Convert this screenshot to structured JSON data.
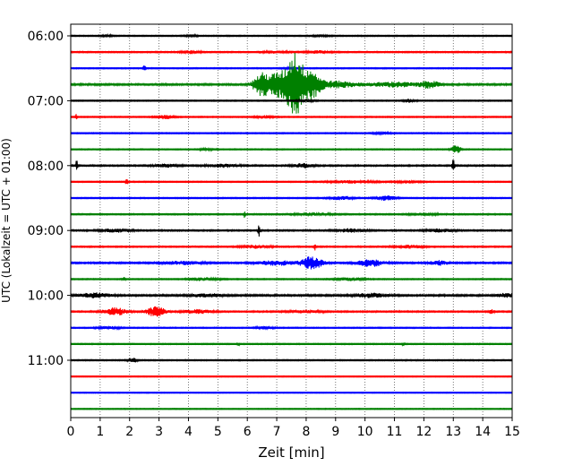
{
  "chart_data": {
    "type": "line",
    "title": "",
    "xlabel": "Zeit  [min]",
    "ylabel": "UTC (Lokalzeit = UTC + 01:00)",
    "xlim": [
      0,
      15
    ],
    "x_ticks": [
      "0",
      "1",
      "2",
      "3",
      "4",
      "5",
      "6",
      "7",
      "8",
      "9",
      "10",
      "11",
      "12",
      "13",
      "14",
      "15"
    ],
    "y_ticks": [
      "06:00",
      "07:00",
      "08:00",
      "09:00",
      "10:00",
      "11:00"
    ],
    "y_tick_trace_index": [
      0,
      4,
      8,
      12,
      16,
      20
    ],
    "grid": "vertical dotted lines",
    "trace_interval_minutes": 15,
    "trace_colors": [
      "#000000",
      "#ff0000",
      "#0000ff",
      "#008000"
    ],
    "traces": [
      {
        "start": "06:00",
        "color": "#000000",
        "noise": 0.6,
        "events": [
          {
            "x": 1.2,
            "amp": 1.2,
            "width": 0.2
          },
          {
            "x": 4.1,
            "amp": 1.0,
            "width": 0.2
          },
          {
            "x": 8.5,
            "amp": 1.0,
            "width": 0.3
          }
        ]
      },
      {
        "start": "06:15",
        "color": "#ff0000",
        "noise": 0.7,
        "events": [
          {
            "x": 4.1,
            "amp": 1.6,
            "width": 0.3
          },
          {
            "x": 7.0,
            "amp": 1.2,
            "width": 0.4
          },
          {
            "x": 8.4,
            "amp": 1.4,
            "width": 0.4
          }
        ]
      },
      {
        "start": "06:30",
        "color": "#0000ff",
        "noise": 0.6,
        "events": [
          {
            "x": 2.5,
            "amp": 4.0,
            "width": 0.04
          },
          {
            "x": 7.5,
            "amp": 1.0,
            "width": 0.3
          }
        ]
      },
      {
        "start": "06:45",
        "color": "#008000",
        "noise": 1.0,
        "events": [
          {
            "x": 6.5,
            "amp": 12.0,
            "width": 0.3
          },
          {
            "x": 7.1,
            "amp": 14.0,
            "width": 0.35
          },
          {
            "x": 7.6,
            "amp": 34.0,
            "width": 0.25
          },
          {
            "x": 8.1,
            "amp": 18.0,
            "width": 0.35
          },
          {
            "x": 9.0,
            "amp": 3.5,
            "width": 0.7
          },
          {
            "x": 11.0,
            "amp": 2.5,
            "width": 0.8
          },
          {
            "x": 12.2,
            "amp": 4.0,
            "width": 0.3
          }
        ]
      },
      {
        "start": "07:00",
        "color": "#000000",
        "noise": 0.6,
        "events": [
          {
            "x": 11.5,
            "amp": 2.0,
            "width": 0.2
          },
          {
            "x": 8.0,
            "amp": 1.2,
            "width": 0.3
          }
        ]
      },
      {
        "start": "07:15",
        "color": "#ff0000",
        "noise": 0.6,
        "events": [
          {
            "x": 0.2,
            "amp": 4.0,
            "width": 0.03
          },
          {
            "x": 3.2,
            "amp": 2.2,
            "width": 0.3
          },
          {
            "x": 6.6,
            "amp": 1.4,
            "width": 0.3
          }
        ]
      },
      {
        "start": "07:30",
        "color": "#0000ff",
        "noise": 0.6,
        "events": [
          {
            "x": 10.6,
            "amp": 1.0,
            "width": 0.3
          }
        ]
      },
      {
        "start": "07:45",
        "color": "#008000",
        "noise": 0.6,
        "events": [
          {
            "x": 4.6,
            "amp": 1.0,
            "width": 0.3
          },
          {
            "x": 13.1,
            "amp": 5.0,
            "width": 0.15
          }
        ]
      },
      {
        "start": "08:00",
        "color": "#000000",
        "noise": 0.8,
        "events": [
          {
            "x": 0.2,
            "amp": 6.0,
            "width": 0.04
          },
          {
            "x": 3.2,
            "amp": 1.8,
            "width": 0.4
          },
          {
            "x": 5.2,
            "amp": 1.8,
            "width": 0.5
          },
          {
            "x": 7.9,
            "amp": 2.5,
            "width": 0.3
          },
          {
            "x": 13.0,
            "amp": 7.0,
            "width": 0.04
          }
        ]
      },
      {
        "start": "08:15",
        "color": "#ff0000",
        "noise": 0.6,
        "events": [
          {
            "x": 1.9,
            "amp": 4.0,
            "width": 0.04
          },
          {
            "x": 9.6,
            "amp": 1.5,
            "width": 0.8
          },
          {
            "x": 11.5,
            "amp": 1.4,
            "width": 0.4
          }
        ]
      },
      {
        "start": "08:30",
        "color": "#0000ff",
        "noise": 0.6,
        "events": [
          {
            "x": 9.2,
            "amp": 2.0,
            "width": 0.4
          },
          {
            "x": 10.7,
            "amp": 2.6,
            "width": 0.35
          }
        ]
      },
      {
        "start": "08:45",
        "color": "#008000",
        "noise": 0.7,
        "events": [
          {
            "x": 5.9,
            "amp": 4.0,
            "width": 0.04
          },
          {
            "x": 8.3,
            "amp": 1.4,
            "width": 0.6
          },
          {
            "x": 12.0,
            "amp": 1.2,
            "width": 0.5
          }
        ]
      },
      {
        "start": "09:00",
        "color": "#000000",
        "noise": 0.8,
        "events": [
          {
            "x": 6.4,
            "amp": 9.0,
            "width": 0.04
          },
          {
            "x": 1.5,
            "amp": 1.8,
            "width": 0.5
          },
          {
            "x": 9.5,
            "amp": 1.8,
            "width": 0.5
          },
          {
            "x": 12.5,
            "amp": 1.6,
            "width": 0.5
          }
        ]
      },
      {
        "start": "09:15",
        "color": "#ff0000",
        "noise": 0.7,
        "events": [
          {
            "x": 8.3,
            "amp": 3.5,
            "width": 0.05
          },
          {
            "x": 6.3,
            "amp": 1.6,
            "width": 0.5
          },
          {
            "x": 11.5,
            "amp": 1.6,
            "width": 0.5
          }
        ]
      },
      {
        "start": "09:30",
        "color": "#0000ff",
        "noise": 0.9,
        "events": [
          {
            "x": 8.2,
            "amp": 7.0,
            "width": 0.35
          },
          {
            "x": 10.2,
            "amp": 4.0,
            "width": 0.45
          },
          {
            "x": 7.0,
            "amp": 2.5,
            "width": 0.6
          },
          {
            "x": 12.5,
            "amp": 2.5,
            "width": 0.3
          },
          {
            "x": 3.8,
            "amp": 1.8,
            "width": 0.6
          }
        ]
      },
      {
        "start": "09:45",
        "color": "#008000",
        "noise": 0.6,
        "events": [
          {
            "x": 1.8,
            "amp": 2.5,
            "width": 0.05
          },
          {
            "x": 4.5,
            "amp": 1.6,
            "width": 0.5
          },
          {
            "x": 9.5,
            "amp": 1.6,
            "width": 0.5
          }
        ]
      },
      {
        "start": "10:00",
        "color": "#000000",
        "noise": 1.0,
        "events": [
          {
            "x": 0.8,
            "amp": 2.5,
            "width": 0.5
          },
          {
            "x": 4.6,
            "amp": 1.8,
            "width": 0.5
          },
          {
            "x": 10.2,
            "amp": 2.2,
            "width": 0.5
          },
          {
            "x": 14.8,
            "amp": 2.0,
            "width": 0.3
          }
        ]
      },
      {
        "start": "10:15",
        "color": "#ff0000",
        "noise": 0.8,
        "events": [
          {
            "x": 1.5,
            "amp": 4.0,
            "width": 0.4
          },
          {
            "x": 2.9,
            "amp": 6.0,
            "width": 0.3
          },
          {
            "x": 4.3,
            "amp": 2.0,
            "width": 0.5
          },
          {
            "x": 8.0,
            "amp": 1.2,
            "width": 0.6
          },
          {
            "x": 14.3,
            "amp": 2.0,
            "width": 0.1
          }
        ]
      },
      {
        "start": "10:30",
        "color": "#0000ff",
        "noise": 0.6,
        "events": [
          {
            "x": 1.3,
            "amp": 1.4,
            "width": 0.4
          },
          {
            "x": 6.6,
            "amp": 1.2,
            "width": 0.3
          }
        ]
      },
      {
        "start": "10:45",
        "color": "#008000",
        "noise": 0.6,
        "events": [
          {
            "x": 5.7,
            "amp": 1.6,
            "width": 0.05
          },
          {
            "x": 11.3,
            "amp": 1.6,
            "width": 0.05
          }
        ]
      },
      {
        "start": "11:00",
        "color": "#000000",
        "noise": 0.6,
        "events": [
          {
            "x": 2.1,
            "amp": 2.8,
            "width": 0.15
          }
        ]
      },
      {
        "start": "11:15",
        "color": "#ff0000",
        "noise": 0.5,
        "events": []
      },
      {
        "start": "11:30",
        "color": "#0000ff",
        "noise": 0.5,
        "events": []
      },
      {
        "start": "11:45",
        "color": "#008000",
        "noise": 0.5,
        "events": []
      }
    ]
  }
}
